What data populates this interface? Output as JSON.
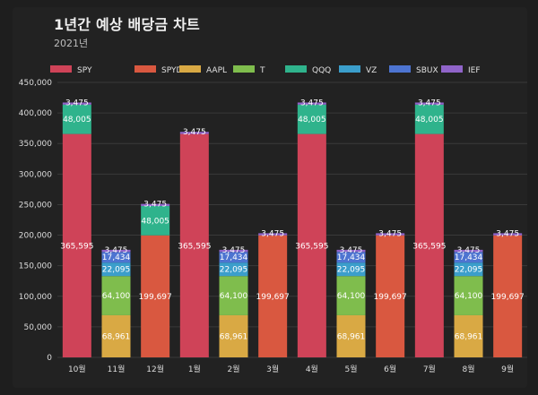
{
  "page": {
    "title": "1년간 예상 배당금 차트",
    "subtitle": "2021년"
  },
  "colors": {
    "background": "#222222",
    "gridline": "#3a3a3a",
    "SPY": "#cf4358",
    "SPYD": "#d95840",
    "AAPL": "#d9a944",
    "T": "#7fbd4d",
    "QQQ": "#2fb38c",
    "VZ": "#3b9ecb",
    "SBUX": "#4d74d1",
    "IEF": "#9064c9"
  },
  "chart_data": {
    "type": "bar",
    "stacked": true,
    "categories": [
      "10월",
      "11월",
      "12월",
      "1월",
      "2월",
      "3월",
      "4월",
      "5월",
      "6월",
      "7월",
      "8월",
      "9월"
    ],
    "ylim": [
      0,
      450000
    ],
    "yticks": [
      0,
      50000,
      100000,
      150000,
      200000,
      250000,
      300000,
      350000,
      400000,
      450000
    ],
    "ytick_labels": [
      "0",
      "50,000",
      "100,000",
      "150,000",
      "200,000",
      "250,000",
      "300,000",
      "350,000",
      "400,000",
      "450,000"
    ],
    "grid": true,
    "legend_position": "top",
    "series": [
      {
        "name": "SPY",
        "values": [
          365595,
          0,
          0,
          365595,
          0,
          0,
          365595,
          0,
          0,
          365595,
          0,
          0
        ],
        "labels": [
          "365,595",
          "",
          "",
          "365,595",
          "",
          "",
          "365,595",
          "",
          "",
          "365,595",
          "",
          ""
        ]
      },
      {
        "name": "SPYD",
        "values": [
          0,
          0,
          199697,
          0,
          0,
          199697,
          0,
          0,
          199697,
          0,
          0,
          199697
        ],
        "labels": [
          "",
          "",
          "199,697",
          "",
          "",
          "199,697",
          "",
          "",
          "199,697",
          "",
          "",
          "199,697"
        ]
      },
      {
        "name": "AAPL",
        "values": [
          0,
          68961,
          0,
          0,
          68961,
          0,
          0,
          68961,
          0,
          0,
          68961,
          0
        ],
        "labels": [
          "",
          "68,961",
          "",
          "",
          "68,961",
          "",
          "",
          "68,961",
          "",
          "",
          "68,961",
          ""
        ]
      },
      {
        "name": "T",
        "values": [
          0,
          64100,
          0,
          0,
          64100,
          0,
          0,
          64100,
          0,
          0,
          64100,
          0
        ],
        "labels": [
          "",
          "64,100",
          "",
          "",
          "64,100",
          "",
          "",
          "64,100",
          "",
          "",
          "64,100",
          ""
        ]
      },
      {
        "name": "QQQ",
        "values": [
          48005,
          0,
          48005,
          0,
          0,
          0,
          48005,
          0,
          0,
          48005,
          0,
          0
        ],
        "labels": [
          "48,005",
          "",
          "48,005",
          "",
          "",
          "",
          "48,005",
          "",
          "",
          "48,005",
          "",
          ""
        ]
      },
      {
        "name": "VZ",
        "values": [
          0,
          22095,
          0,
          0,
          22095,
          0,
          0,
          22095,
          0,
          0,
          22095,
          0
        ],
        "labels": [
          "",
          "22,095",
          "",
          "",
          "22,095",
          "",
          "",
          "22,095",
          "",
          "",
          "22,095",
          ""
        ]
      },
      {
        "name": "SBUX",
        "values": [
          0,
          17434,
          0,
          0,
          17434,
          0,
          0,
          17434,
          0,
          0,
          17434,
          0
        ],
        "labels": [
          "",
          "17,434",
          "",
          "",
          "17,434",
          "",
          "",
          "17,434",
          "",
          "",
          "17,434",
          ""
        ]
      },
      {
        "name": "IEF",
        "values": [
          3475,
          3475,
          3475,
          3475,
          3475,
          3475,
          3475,
          3475,
          3475,
          3475,
          3475,
          3475
        ],
        "labels": [
          "3,475",
          "3,475",
          "3,475",
          "3,475",
          "3,475",
          "3,475",
          "3,475",
          "3,475",
          "3,475",
          "3,475",
          "3,475",
          "3,475"
        ]
      }
    ]
  }
}
